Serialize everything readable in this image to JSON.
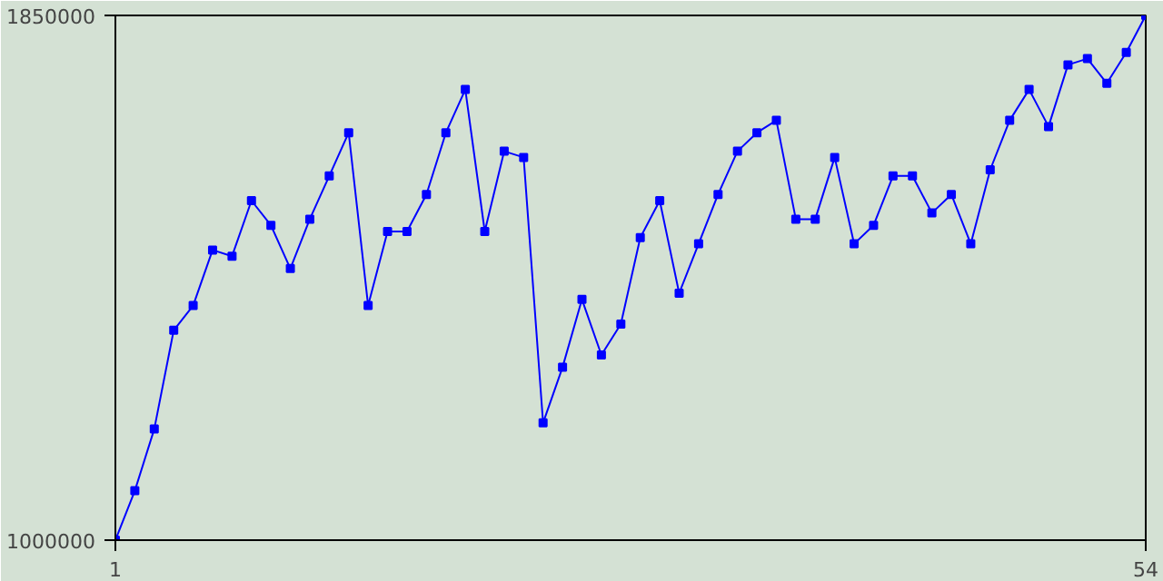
{
  "chart_data": {
    "type": "line",
    "x": [
      1,
      2,
      3,
      4,
      5,
      6,
      7,
      8,
      9,
      10,
      11,
      12,
      13,
      14,
      15,
      16,
      17,
      18,
      19,
      20,
      21,
      22,
      23,
      24,
      25,
      26,
      27,
      28,
      29,
      30,
      31,
      32,
      33,
      34,
      35,
      36,
      37,
      38,
      39,
      40,
      41,
      42,
      43,
      44,
      45,
      46,
      47,
      48,
      49,
      50,
      51,
      52,
      53,
      54
    ],
    "series": [
      {
        "color": "#0000ff",
        "values": [
          1000000,
          1080000,
          1180000,
          1340000,
          1380000,
          1470000,
          1460000,
          1550000,
          1510000,
          1440000,
          1520000,
          1590000,
          1660000,
          1380000,
          1500000,
          1500000,
          1560000,
          1660000,
          1730000,
          1500000,
          1630000,
          1620000,
          1190000,
          1280000,
          1390000,
          1300000,
          1350000,
          1490000,
          1550000,
          1400000,
          1480000,
          1560000,
          1630000,
          1660000,
          1680000,
          1520000,
          1520000,
          1620000,
          1480000,
          1510000,
          1590000,
          1590000,
          1530000,
          1560000,
          1480000,
          1600000,
          1680000,
          1730000,
          1670000,
          1770000,
          1780000,
          1740000,
          1790000,
          1850000
        ]
      }
    ],
    "xlim": [
      1,
      54
    ],
    "ylim": [
      1000000,
      1850000
    ],
    "xticks": [
      1,
      54
    ],
    "yticks": [
      1000000,
      1850000
    ],
    "marker": "square",
    "line_style": "solid"
  }
}
